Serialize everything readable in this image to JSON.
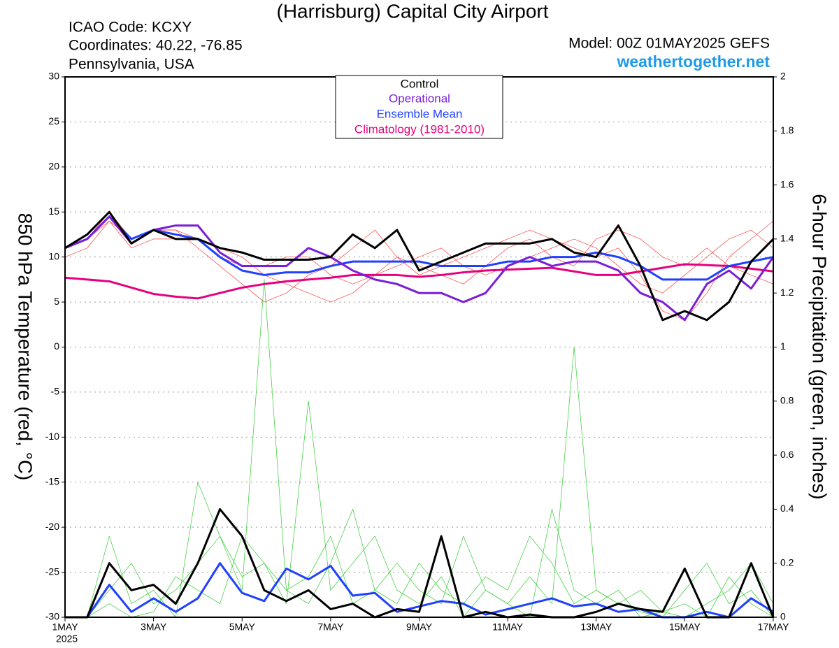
{
  "chart_data": {
    "type": "line",
    "title": "(Harrisburg) Capital City Airport",
    "icao": "ICAO Code: KCXY",
    "coordinates": "Coordinates: 40.22, -76.85",
    "location": "Pennsylvania, USA",
    "model": "Model: 00Z 01MAY2025 GEFS",
    "site": "weathertogether.net",
    "ylabel": "850 hPa Temperature (red, °C)",
    "y2label": "6-hour Precipitation (green, inches)",
    "x_year_label": "2025",
    "x": [
      0,
      0.5,
      1,
      1.5,
      2,
      2.5,
      3,
      3.5,
      4,
      4.5,
      5,
      5.5,
      6,
      6.5,
      7,
      7.5,
      8,
      8.5,
      9,
      9.5,
      10,
      10.5,
      11,
      11.5,
      12,
      12.5,
      13,
      13.5,
      14,
      14.5,
      15,
      15.5,
      16
    ],
    "xlim": [
      0,
      16
    ],
    "xticks": [
      {
        "value": 0,
        "label": "1MAY"
      },
      {
        "value": 2,
        "label": "3MAY"
      },
      {
        "value": 4,
        "label": "5MAY"
      },
      {
        "value": 6,
        "label": "7MAY"
      },
      {
        "value": 8,
        "label": "9MAY"
      },
      {
        "value": 10,
        "label": "11MAY"
      },
      {
        "value": 12,
        "label": "13MAY"
      },
      {
        "value": 14,
        "label": "15MAY"
      },
      {
        "value": 16,
        "label": "17MAY"
      }
    ],
    "ylim": [
      -30,
      30
    ],
    "yticks": [
      -30,
      -25,
      -20,
      -15,
      -10,
      -5,
      0,
      5,
      10,
      15,
      20,
      25,
      30
    ],
    "y2lim": [
      0,
      2
    ],
    "y2ticks": [
      0,
      0.2,
      0.4,
      0.6,
      0.8,
      1,
      1.2,
      1.4,
      1.6,
      1.8,
      2
    ],
    "grid": true,
    "series": [
      {
        "name": "Control",
        "color": "#000000",
        "linewidth": 3,
        "values": [
          11,
          12.5,
          15,
          11.5,
          13,
          12,
          12,
          11,
          10.5,
          9.7,
          9.7,
          9.7,
          10,
          12.5,
          11,
          13,
          8.5,
          9.5,
          10.5,
          11.5,
          11.5,
          11.5,
          12,
          10.5,
          10,
          13.5,
          9,
          3,
          4,
          3,
          5,
          9.5,
          12
        ]
      },
      {
        "name": "Operational",
        "color": "#7a1fd6",
        "linewidth": 3,
        "values": [
          11,
          12,
          14.5,
          11.5,
          13,
          13.5,
          13.5,
          10.5,
          9,
          9,
          9,
          11,
          10,
          8.5,
          7.5,
          7,
          6,
          6,
          5,
          6,
          9,
          10,
          9,
          9.5,
          9.5,
          8.5,
          6,
          5,
          3,
          7,
          8.5,
          6.5,
          10
        ]
      },
      {
        "name": "Ensemble Mean",
        "color": "#2040ff",
        "linewidth": 3,
        "values": [
          11,
          12,
          14.5,
          12,
          13,
          12.5,
          12,
          10,
          8.5,
          8,
          8.3,
          8.3,
          9,
          9.5,
          9.5,
          9.5,
          9.5,
          9,
          9,
          9,
          9.5,
          9.5,
          10,
          10,
          10.5,
          10,
          9,
          7.5,
          7.5,
          7.5,
          9,
          9.5,
          10
        ]
      },
      {
        "name": "Climatology (1981-2010)",
        "color": "#e6007e",
        "linewidth": 3,
        "values": [
          7.7,
          7.5,
          7.3,
          6.6,
          5.9,
          5.6,
          5.4,
          6,
          6.6,
          7,
          7.3,
          7.5,
          7.7,
          8,
          8,
          8,
          7.8,
          8,
          8.3,
          8.5,
          8.6,
          8.7,
          8.8,
          8.4,
          8,
          8,
          8.4,
          8.8,
          9.2,
          9.1,
          9,
          8.7,
          8.4
        ]
      },
      {
        "color": "#000000",
        "linewidth": 3,
        "axis": "y2",
        "values": [
          0,
          0,
          0.2,
          0.1,
          0.12,
          0.05,
          0.2,
          0.4,
          0.3,
          0.1,
          0.06,
          0.1,
          0.03,
          0.05,
          0,
          0.03,
          0.02,
          0.3,
          0,
          0.02,
          0,
          0.01,
          0,
          0,
          0.02,
          0.05,
          0.03,
          0.02,
          0.18,
          0,
          0,
          0.2,
          0
        ]
      },
      {
        "color": "#2040ff",
        "linewidth": 3,
        "axis": "y2",
        "values": [
          0,
          0,
          0.12,
          0.02,
          0.07,
          0.02,
          0.07,
          0.2,
          0.09,
          0.06,
          0.18,
          0.14,
          0.19,
          0.08,
          0.09,
          0.02,
          0.04,
          0.06,
          0.05,
          0.01,
          0.03,
          0.05,
          0.07,
          0.04,
          0.05,
          0.02,
          0.03,
          0,
          0,
          0.02,
          0,
          0.07,
          0.02
        ]
      },
      {
        "color": "#ff4040",
        "linewidth": 0.7,
        "values": [
          11,
          12,
          15,
          12,
          13,
          13,
          11,
          9,
          7,
          5,
          6,
          8,
          9,
          11,
          13,
          10,
          8,
          9,
          10,
          11,
          12,
          13,
          12,
          11,
          10,
          11,
          8,
          4,
          3,
          6,
          10,
          12,
          14
        ]
      },
      {
        "color": "#ff4040",
        "linewidth": 0.7,
        "values": [
          10,
          11,
          14,
          11,
          12,
          12,
          12,
          10,
          9,
          9,
          10,
          10,
          8,
          7,
          8,
          9,
          10,
          11,
          9,
          8,
          9,
          10,
          11,
          12,
          11,
          9,
          7,
          6,
          8,
          10,
          12,
          13,
          11
        ]
      },
      {
        "color": "#ff4040",
        "linewidth": 0.7,
        "values": [
          11,
          12,
          14,
          12,
          13,
          13,
          12,
          11,
          10,
          8,
          7,
          6,
          5,
          6,
          8,
          10,
          9,
          8,
          7,
          9,
          11,
          12,
          10,
          9,
          12,
          13,
          12,
          10,
          9,
          11,
          9,
          8,
          7
        ]
      },
      {
        "color": "#33cc33",
        "linewidth": 0.7,
        "axis": "y2",
        "values": [
          0,
          0,
          0.3,
          0.05,
          0.1,
          0,
          0.5,
          0.3,
          0.15,
          0.2,
          0.05,
          0.8,
          0.1,
          0.2,
          0.3,
          0.1,
          0.05,
          0.15,
          0,
          0.1,
          0.05,
          0,
          0.4,
          0.1,
          0.05,
          0.1,
          0,
          0.02,
          0,
          0.05,
          0.1,
          0.2,
          0.05
        ]
      },
      {
        "color": "#33cc33",
        "linewidth": 0.7,
        "axis": "y2",
        "values": [
          0,
          0,
          0.1,
          0.2,
          0.05,
          0.1,
          0.2,
          0.3,
          0.1,
          1.25,
          0.1,
          0.05,
          0.2,
          0.4,
          0.1,
          0.05,
          0.2,
          0.1,
          0.05,
          0.15,
          0.1,
          0.3,
          0.2,
          0.05,
          0.1,
          0.05,
          0.02,
          0,
          0.1,
          0.2,
          0.05,
          0.1,
          0
        ]
      },
      {
        "color": "#33cc33",
        "linewidth": 0.7,
        "axis": "y2",
        "values": [
          0,
          0,
          0.05,
          0,
          0.02,
          0.15,
          0.1,
          0.05,
          0.3,
          0.2,
          0.1,
          0.15,
          0.3,
          0.05,
          0.1,
          0.2,
          0.1,
          0.05,
          0.3,
          0.1,
          0.05,
          0.15,
          0.05,
          1.0,
          0.1,
          0.05,
          0.1,
          0.02,
          0.05,
          0,
          0.15,
          0.05,
          0
        ]
      }
    ]
  }
}
